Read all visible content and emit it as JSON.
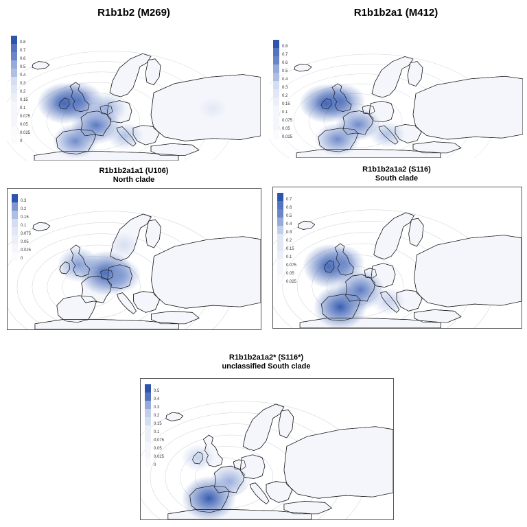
{
  "maps": [
    {
      "title": "R1b1b2 (M269)",
      "subtitle": "",
      "legend": [
        "0.8",
        "0.7",
        "0.6",
        "0.5",
        "0.4",
        "0.3",
        "0.2",
        "0.15",
        "0.1",
        "0.075",
        "0.05",
        "0.025",
        "0"
      ],
      "hotspots": [
        {
          "region": "Ireland",
          "value": 0.8
        },
        {
          "region": "Britain",
          "value": 0.7
        },
        {
          "region": "Iberia",
          "value": 0.6
        },
        {
          "region": "France",
          "value": 0.7
        },
        {
          "region": "Low Countries",
          "value": 0.5
        },
        {
          "region": "Italy",
          "value": 0.4
        },
        {
          "region": "Volga-Ural",
          "value": 0.2
        }
      ]
    },
    {
      "title": "R1b1b2a1 (M412)",
      "subtitle": "",
      "legend": [
        "0.8",
        "0.7",
        "0.6",
        "0.5",
        "0.4",
        "0.3",
        "0.2",
        "0.15",
        "0.1",
        "0.075",
        "0.05",
        "0.025"
      ],
      "hotspots": [
        {
          "region": "Ireland",
          "value": 0.8
        },
        {
          "region": "Britain",
          "value": 0.7
        },
        {
          "region": "Iberia",
          "value": 0.6
        },
        {
          "region": "France",
          "value": 0.6
        },
        {
          "region": "Italy",
          "value": 0.4
        }
      ]
    },
    {
      "title": "R1b1b2a1a1 (U106)",
      "subtitle": "North clade",
      "legend": [
        "0.3",
        "0.2",
        "0.15",
        "0.1",
        "0.075",
        "0.05",
        "0.025",
        "0"
      ],
      "hotspots": [
        {
          "region": "Low Countries",
          "value": 0.3
        },
        {
          "region": "Britain",
          "value": 0.2
        },
        {
          "region": "Germany",
          "value": 0.2
        },
        {
          "region": "Scandinavia",
          "value": 0.1
        }
      ]
    },
    {
      "title": "R1b1b2a1a2 (S116)",
      "subtitle": "South clade",
      "legend": [
        "0.7",
        "0.6",
        "0.5",
        "0.4",
        "0.3",
        "0.2",
        "0.15",
        "0.1",
        "0.075",
        "0.05",
        "0.025"
      ],
      "hotspots": [
        {
          "region": "Iberia",
          "value": 0.7
        },
        {
          "region": "Ireland",
          "value": 0.7
        },
        {
          "region": "France",
          "value": 0.6
        },
        {
          "region": "Britain",
          "value": 0.5
        },
        {
          "region": "Italy",
          "value": 0.3
        }
      ]
    },
    {
      "title": "R1b1b2a1a2* (S116*)",
      "subtitle": "unclassified South clade",
      "legend": [
        "0.5",
        "0.4",
        "0.3",
        "0.2",
        "0.15",
        "0.1",
        "0.075",
        "0.05",
        "0.025",
        "0"
      ],
      "hotspots": [
        {
          "region": "Iberia",
          "value": 0.5
        },
        {
          "region": "France",
          "value": 0.3
        },
        {
          "region": "Ireland",
          "value": 0.2
        }
      ]
    }
  ],
  "colors": {
    "scale": [
      "#2e55ad",
      "#3f63b6",
      "#5474bf",
      "#6a86c8",
      "#7f98d1",
      "#96abda",
      "#aebfe3",
      "#c3cfea",
      "#d5ddf0",
      "#e2e7f5",
      "#eceff8",
      "#f4f6fb",
      "#fbfbfd"
    ],
    "land": "#ffffff",
    "border": "#222222",
    "isoline": "#9aa0ae"
  }
}
